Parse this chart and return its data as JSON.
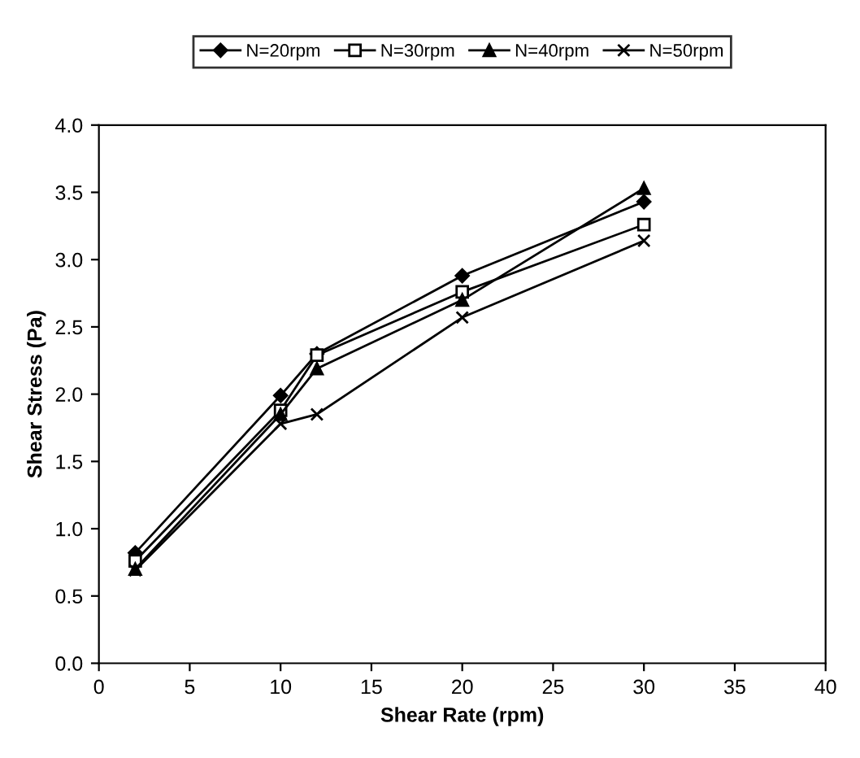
{
  "chart_data": {
    "type": "line",
    "xlabel": "Shear Rate (rpm)",
    "ylabel": "Shear Stress (Pa)",
    "x": [
      2,
      10,
      12,
      20,
      30
    ],
    "series": [
      {
        "name": "N=20rpm",
        "color": "#000000",
        "marker": "diamond",
        "values": [
          0.82,
          1.99,
          2.3,
          2.88,
          3.43
        ]
      },
      {
        "name": "N=30rpm",
        "color": "#000000",
        "marker": "square",
        "values": [
          0.76,
          1.88,
          2.29,
          2.76,
          3.26
        ]
      },
      {
        "name": "N=40rpm",
        "color": "#000000",
        "marker": "triangle",
        "values": [
          0.7,
          1.85,
          2.19,
          2.7,
          3.53
        ]
      },
      {
        "name": "N=50rpm",
        "color": "#000000",
        "marker": "cross",
        "values": [
          0.69,
          1.78,
          1.85,
          2.57,
          3.14
        ]
      }
    ],
    "xlim": [
      0,
      40
    ],
    "xticks": [
      0,
      5,
      10,
      15,
      20,
      25,
      30,
      35,
      40
    ],
    "ylim": [
      0,
      4
    ],
    "yticks": [
      {
        "value": 0,
        "label": "0.0"
      },
      {
        "value": 0.5,
        "label": "0.5"
      },
      {
        "value": 1,
        "label": "1.0"
      },
      {
        "value": 1.5,
        "label": "1.5"
      },
      {
        "value": 2,
        "label": "2.0"
      },
      {
        "value": 2.5,
        "label": "2.5"
      },
      {
        "value": 3,
        "label": "3.0"
      },
      {
        "value": 3.5,
        "label": "3.5"
      },
      {
        "value": 4,
        "label": "4.0"
      }
    ],
    "grid": false,
    "legend": "top",
    "line_style": "solid"
  }
}
